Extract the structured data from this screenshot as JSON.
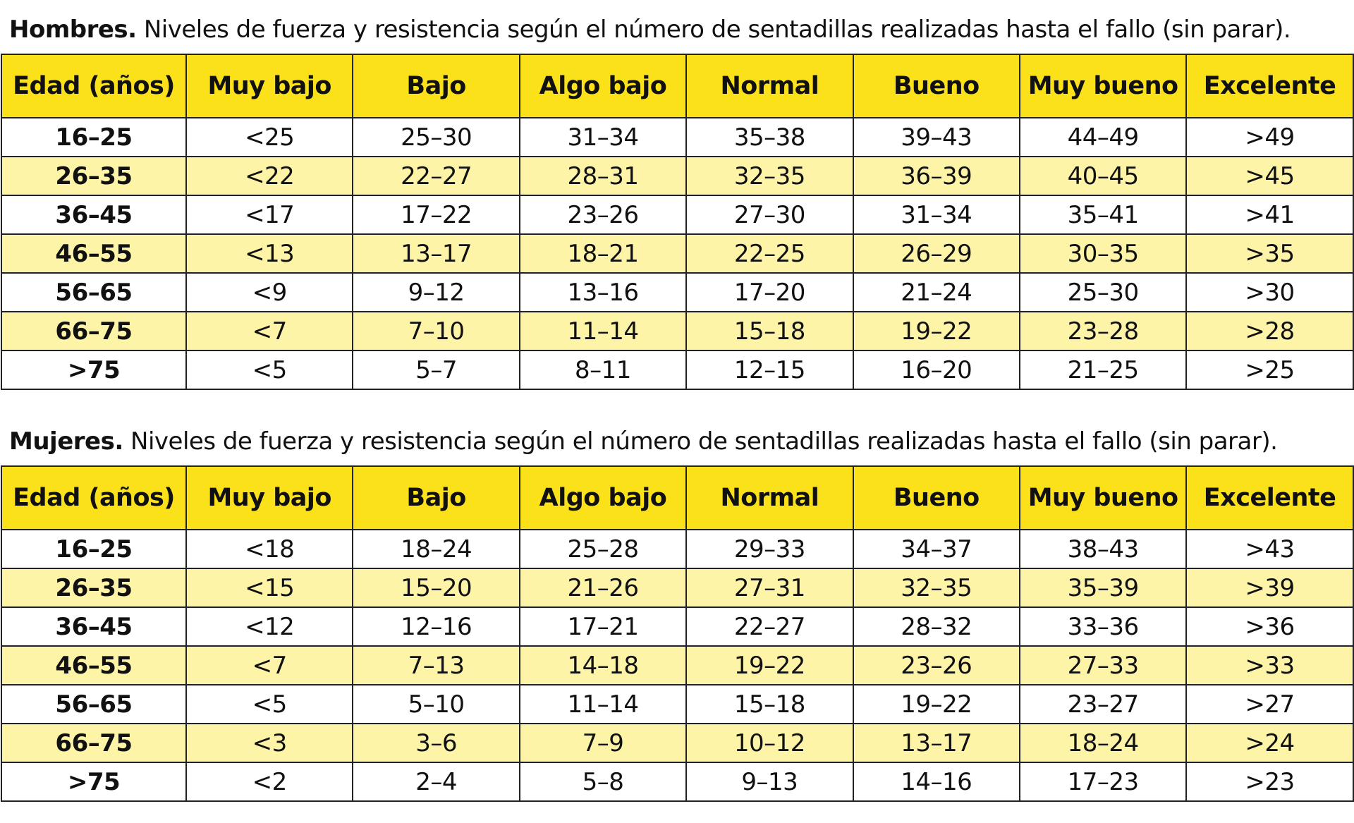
{
  "tables": [
    {
      "title_bold": "Hombres.",
      "title_rest": " Niveles de fuerza y resistencia según el número de sentadillas realizadas hasta el fallo (sin parar).",
      "headers": [
        "Edad (años)",
        "Muy bajo",
        "Bajo",
        "Algo bajo",
        "Normal",
        "Bueno",
        "Muy bueno",
        "Excelente"
      ],
      "rows": [
        [
          "16–25",
          "<25",
          "25–30",
          "31–34",
          "35–38",
          "39–43",
          "44–49",
          ">49"
        ],
        [
          "26–35",
          "<22",
          "22–27",
          "28–31",
          "32–35",
          "36–39",
          "40–45",
          ">45"
        ],
        [
          "36–45",
          "<17",
          "17–22",
          "23–26",
          "27–30",
          "31–34",
          "35–41",
          ">41"
        ],
        [
          "46–55",
          "<13",
          "13–17",
          "18–21",
          "22–25",
          "26–29",
          "30–35",
          ">35"
        ],
        [
          "56–65",
          "<9",
          "9–12",
          "13–16",
          "17–20",
          "21–24",
          "25–30",
          ">30"
        ],
        [
          "66–75",
          "<7",
          "7–10",
          "11–14",
          "15–18",
          "19–22",
          "23–28",
          ">28"
        ],
        [
          ">75",
          "<5",
          "5–7",
          "8–11",
          "12–15",
          "16–20",
          "21–25",
          ">25"
        ]
      ]
    },
    {
      "title_bold": "Mujeres.",
      "title_rest": " Niveles de fuerza y resistencia según el número de sentadillas realizadas hasta el fallo (sin parar).",
      "headers": [
        "Edad (años)",
        "Muy bajo",
        "Bajo",
        "Algo bajo",
        "Normal",
        "Bueno",
        "Muy bueno",
        "Excelente"
      ],
      "rows": [
        [
          "16–25",
          "<18",
          "18–24",
          "25–28",
          "29–33",
          "34–37",
          "38–43",
          ">43"
        ],
        [
          "26–35",
          "<15",
          "15–20",
          "21–26",
          "27–31",
          "32–35",
          "35–39",
          ">39"
        ],
        [
          "36–45",
          "<12",
          "12–16",
          "17–21",
          "22–27",
          "28–32",
          "33–36",
          ">36"
        ],
        [
          "46–55",
          "<7",
          "7–13",
          "14–18",
          "19–22",
          "23–26",
          "27–33",
          ">33"
        ],
        [
          "56–65",
          "<5",
          "5–10",
          "11–14",
          "15–18",
          "19–22",
          "23–27",
          ">27"
        ],
        [
          "66–75",
          "<3",
          "3–6",
          "7–9",
          "10–12",
          "13–17",
          "18–24",
          ">24"
        ],
        [
          ">75",
          "<2",
          "2–4",
          "5–8",
          "9–13",
          "14–16",
          "17–23",
          ">23"
        ]
      ]
    }
  ]
}
